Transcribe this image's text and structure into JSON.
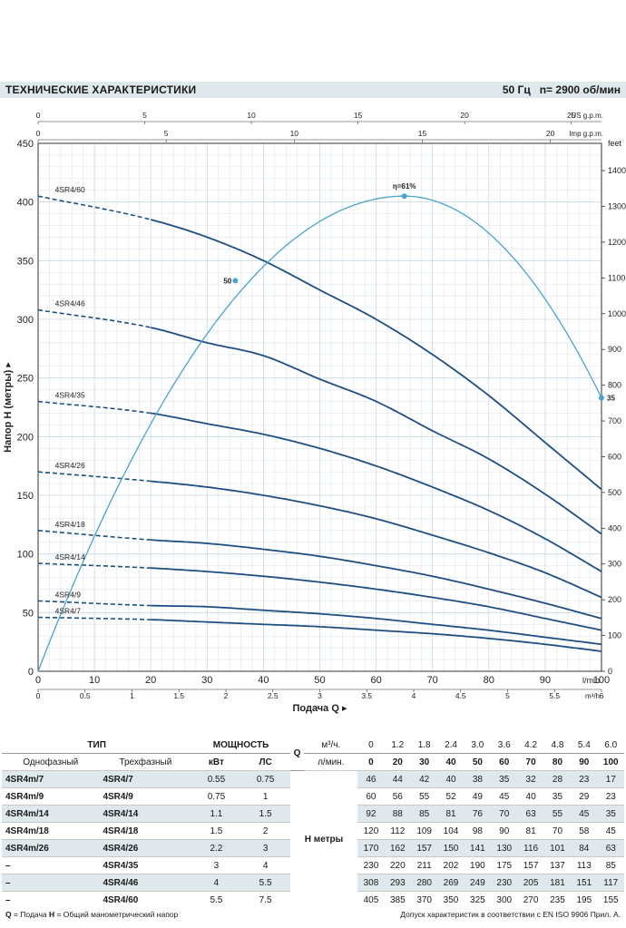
{
  "header": {
    "title": "ТЕХНИЧЕСКИЕ ХАРАКТЕРИСТИКИ",
    "frequency": "50 Гц",
    "speed": "n= 2900 об/мин"
  },
  "chart_data": {
    "type": "line",
    "title": "",
    "xlabel": "Подача Q",
    "ylabel": "Напор Н (метры)",
    "xlim": [
      0,
      100
    ],
    "ylim": [
      0,
      450
    ],
    "x_unit": "l/min",
    "y_tick_labels": [
      "0",
      "50",
      "100",
      "150",
      "200",
      "250",
      "300",
      "350",
      "400",
      "450"
    ],
    "x_tick_labels": [
      "0",
      "10",
      "20",
      "30",
      "40",
      "50",
      "60",
      "70",
      "80",
      "90",
      "100"
    ],
    "m3h_tick_labels": [
      "0",
      "0.5",
      "1",
      "1.5",
      "2",
      "2.5",
      "3",
      "3.5",
      "4",
      "4.5",
      "5",
      "5.5",
      "6"
    ],
    "m3h_unit": "m³/h",
    "us_gpm_tick_labels": [
      "0",
      "5",
      "10",
      "15",
      "20",
      "25"
    ],
    "us_gpm_unit": "US g.p.m.",
    "imp_gpm_tick_labels": [
      "0",
      "5",
      "10",
      "15",
      "20"
    ],
    "imp_gpm_unit": "Imp g.p.m.",
    "feet_tick_labels": [
      "0",
      "100",
      "200",
      "300",
      "400",
      "500",
      "600",
      "700",
      "800",
      "900",
      "1000",
      "1100",
      "1200",
      "1300",
      "1400"
    ],
    "feet_unit": "feet",
    "grid": true,
    "x": [
      0,
      20,
      30,
      40,
      50,
      60,
      70,
      80,
      90,
      100
    ],
    "series": [
      {
        "name": "4SR4/60",
        "values": [
          405,
          385,
          370,
          350,
          325,
          300,
          270,
          235,
          195,
          155
        ]
      },
      {
        "name": "4SR4/46",
        "values": [
          308,
          293,
          280,
          269,
          249,
          230,
          205,
          181,
          151,
          117
        ]
      },
      {
        "name": "4SR4/35",
        "values": [
          230,
          220,
          211,
          202,
          190,
          175,
          157,
          137,
          113,
          85
        ]
      },
      {
        "name": "4SR4/26",
        "values": [
          170,
          162,
          157,
          150,
          141,
          130,
          116,
          101,
          84,
          63
        ]
      },
      {
        "name": "4SR4/18",
        "values": [
          120,
          112,
          109,
          104,
          98,
          90,
          81,
          70,
          58,
          45
        ]
      },
      {
        "name": "4SR4/14",
        "values": [
          92,
          88,
          85,
          81,
          76,
          70,
          63,
          55,
          45,
          35
        ]
      },
      {
        "name": "4SR4/9",
        "values": [
          60,
          56,
          55,
          52,
          49,
          45,
          40,
          35,
          29,
          23
        ]
      },
      {
        "name": "4SR4/7",
        "values": [
          46,
          44,
          42,
          40,
          38,
          35,
          32,
          28,
          23,
          17
        ]
      }
    ],
    "efficiency": {
      "peak_label": "η=61%",
      "points": [
        {
          "x": 35,
          "y": 333,
          "label": "50"
        },
        {
          "x": 65,
          "y": 405,
          "label": ""
        },
        {
          "x": 100,
          "y": 233,
          "label": "35"
        }
      ]
    },
    "colors": {
      "curve": "#1f4f82",
      "efficiency": "#4aa3cf",
      "grid": "#c9d9e3"
    }
  },
  "table": {
    "head_type": "ТИП",
    "head_power": "МОЩНОСТЬ",
    "q_label": "Q",
    "q_unit_m3h": "м³/ч.",
    "q_unit_lmin": "л/мин.",
    "q_m3h": [
      "0",
      "1.2",
      "1.8",
      "2.4",
      "3.0",
      "3.6",
      "4.2",
      "4.8",
      "5.4",
      "6.0"
    ],
    "q_lmin": [
      "0",
      "20",
      "30",
      "40",
      "50",
      "60",
      "70",
      "80",
      "90",
      "100"
    ],
    "single_phase": "Однофазный",
    "three_phase": "Трехфазный",
    "kw": "кВт",
    "hp": "ЛС",
    "h_label": "Н метры",
    "rows": [
      {
        "single": "4SR4m/7",
        "three": "4SR4/7",
        "kw": "0.55",
        "hp": "0.75",
        "h": [
          "46",
          "44",
          "42",
          "40",
          "38",
          "35",
          "32",
          "28",
          "23",
          "17"
        ]
      },
      {
        "single": "4SR4m/9",
        "three": "4SR4/9",
        "kw": "0.75",
        "hp": "1",
        "h": [
          "60",
          "56",
          "55",
          "52",
          "49",
          "45",
          "40",
          "35",
          "29",
          "23"
        ]
      },
      {
        "single": "4SR4m/14",
        "three": "4SR4/14",
        "kw": "1.1",
        "hp": "1.5",
        "h": [
          "92",
          "88",
          "85",
          "81",
          "76",
          "70",
          "63",
          "55",
          "45",
          "35"
        ]
      },
      {
        "single": "4SR4m/18",
        "three": "4SR4/18",
        "kw": "1.5",
        "hp": "2",
        "h": [
          "120",
          "112",
          "109",
          "104",
          "98",
          "90",
          "81",
          "70",
          "58",
          "45"
        ]
      },
      {
        "single": "4SR4m/26",
        "three": "4SR4/26",
        "kw": "2.2",
        "hp": "3",
        "h": [
          "170",
          "162",
          "157",
          "150",
          "141",
          "130",
          "116",
          "101",
          "84",
          "63"
        ]
      },
      {
        "single": "–",
        "three": "4SR4/35",
        "kw": "3",
        "hp": "4",
        "h": [
          "230",
          "220",
          "211",
          "202",
          "190",
          "175",
          "157",
          "137",
          "113",
          "85"
        ]
      },
      {
        "single": "–",
        "three": "4SR4/46",
        "kw": "4",
        "hp": "5.5",
        "h": [
          "308",
          "293",
          "280",
          "269",
          "249",
          "230",
          "205",
          "181",
          "151",
          "117"
        ]
      },
      {
        "single": "–",
        "three": "4SR4/60",
        "kw": "5.5",
        "hp": "7.5",
        "h": [
          "405",
          "385",
          "370",
          "350",
          "325",
          "300",
          "270",
          "235",
          "195",
          "155"
        ]
      }
    ]
  },
  "footer": {
    "left_q": "Q",
    "left_q_text": " = Подача  ",
    "left_h": "H",
    "left_h_text": " = Общий манометрический напор",
    "right": "Допуск характеристик в соответствии с EN ISO 9906 Прил. A."
  }
}
